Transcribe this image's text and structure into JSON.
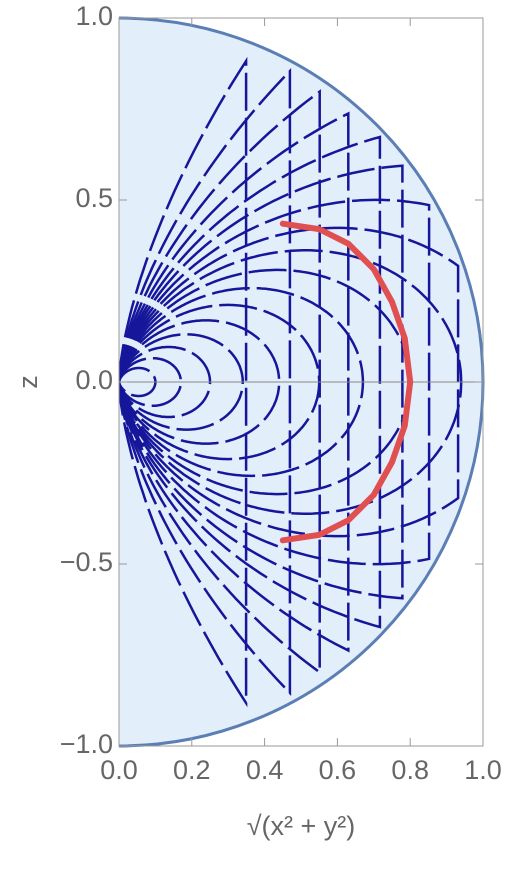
{
  "chart_data": {
    "type": "streamplot",
    "x_label": "√(x² + y²)",
    "y_label": "z",
    "xlim": [
      0,
      1
    ],
    "ylim": [
      -1,
      1
    ],
    "xticks": [
      {
        "value": 0,
        "label": "0.0"
      },
      {
        "value": 0.2,
        "label": "0.2"
      },
      {
        "value": 0.4,
        "label": "0.4"
      },
      {
        "value": 0.6,
        "label": "0.6"
      },
      {
        "value": 0.8,
        "label": "0.8"
      },
      {
        "value": 1,
        "label": "1.0"
      }
    ],
    "yticks": [
      {
        "value": -1,
        "label": "−1.0"
      },
      {
        "value": -0.5,
        "label": "−0.5"
      },
      {
        "value": 0,
        "label": "0.0"
      },
      {
        "value": 0.5,
        "label": "0.5"
      },
      {
        "value": 1,
        "label": "1.0"
      }
    ],
    "region_color": "#e3eefb",
    "region_edge": "#5b7fb5",
    "stream_color": "#16169a",
    "highlight": {
      "color": "#e05050",
      "x": [
        0.45,
        0.55,
        0.63,
        0.7,
        0.75,
        0.785,
        0.8,
        0.785,
        0.75,
        0.7,
        0.63,
        0.55,
        0.45
      ],
      "y": [
        0.435,
        0.42,
        0.38,
        0.31,
        0.22,
        0.12,
        0,
        -0.12,
        -0.22,
        -0.31,
        -0.38,
        -0.42,
        -0.435
      ]
    }
  }
}
